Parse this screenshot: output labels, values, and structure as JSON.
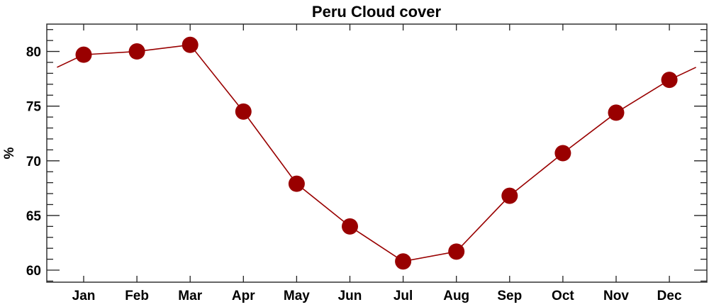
{
  "chart_data": {
    "type": "line",
    "title": "Peru Cloud cover",
    "xlabel": "",
    "ylabel": "%",
    "categories": [
      "Jan",
      "Feb",
      "Mar",
      "Apr",
      "May",
      "Jun",
      "Jul",
      "Aug",
      "Sep",
      "Oct",
      "Nov",
      "Dec"
    ],
    "values": [
      79.7,
      80.0,
      80.6,
      74.5,
      67.9,
      64.0,
      60.8,
      61.7,
      66.8,
      70.7,
      74.4,
      77.4
    ],
    "ylim": [
      58.9,
      82.5
    ],
    "yticks": [
      60,
      65,
      70,
      75,
      80
    ],
    "y_minor_step": 1,
    "grid": false,
    "markers": "filled-circle",
    "line_wraps_around_year": true,
    "color": "#990000"
  }
}
